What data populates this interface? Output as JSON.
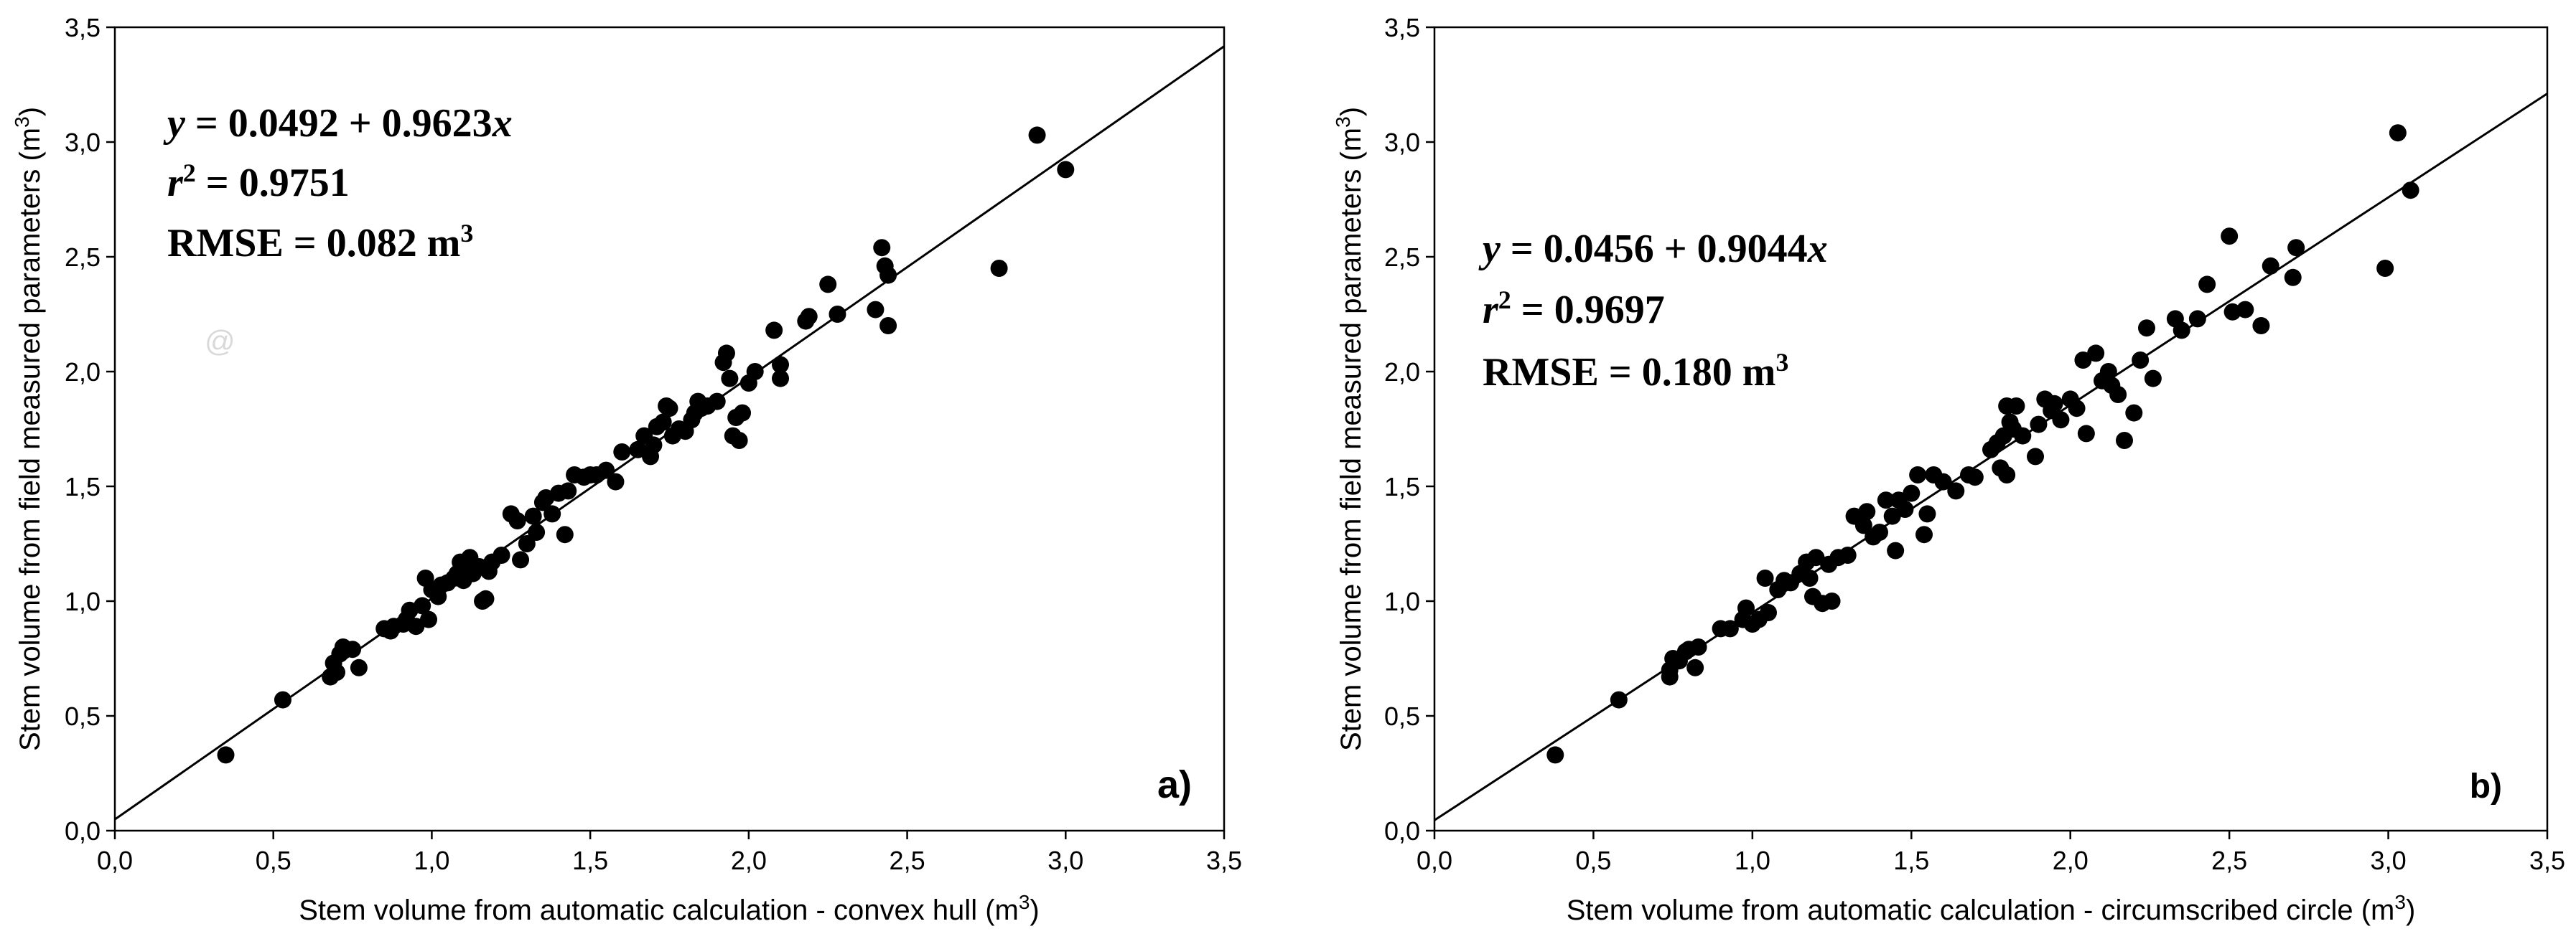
{
  "chart_data": [
    {
      "type": "scatter",
      "panel_label": "a)",
      "xlabel": "Stem volume from automatic calculation - convex hull (m",
      "xlabel_sup": "3",
      "xlabel_end": ")",
      "ylabel": "Stem volume from field measured parameters (m",
      "ylabel_sup": "3",
      "ylabel_end": ")",
      "xlim": [
        0,
        3.5
      ],
      "ylim": [
        0,
        3.5
      ],
      "xticks": [
        "0,0",
        "0,5",
        "1,0",
        "1,5",
        "2,0",
        "2,5",
        "3,0",
        "3,5"
      ],
      "yticks": [
        "0,0",
        "0,5",
        "1,0",
        "1,5",
        "2,0",
        "2,5",
        "3,0",
        "3,5"
      ],
      "regression": {
        "intercept": 0.0492,
        "slope": 0.9623
      },
      "annotations": {
        "eq_y": "y",
        "eq_rest": " = 0.0492 + 0.9623",
        "eq_x": "x",
        "r2_r": "r",
        "r2_sup": "2",
        "r2_rest": " = 0.9751",
        "rmse": "RMSE = 0.082 m",
        "rmse_sup": "3",
        "stray_mark": "@"
      },
      "points": [
        [
          0.35,
          0.33
        ],
        [
          0.53,
          0.57
        ],
        [
          0.68,
          0.67
        ],
        [
          0.69,
          0.73
        ],
        [
          0.7,
          0.69
        ],
        [
          0.71,
          0.77
        ],
        [
          0.72,
          0.8
        ],
        [
          0.75,
          0.79
        ],
        [
          0.77,
          0.71
        ],
        [
          0.85,
          0.88
        ],
        [
          0.87,
          0.87
        ],
        [
          0.88,
          0.89
        ],
        [
          0.91,
          0.9
        ],
        [
          0.92,
          0.92
        ],
        [
          0.93,
          0.96
        ],
        [
          0.95,
          0.89
        ],
        [
          0.97,
          0.98
        ],
        [
          0.98,
          1.1
        ],
        [
          0.99,
          0.92
        ],
        [
          1.0,
          1.05
        ],
        [
          1.02,
          1.02
        ],
        [
          1.03,
          1.07
        ],
        [
          1.05,
          1.08
        ],
        [
          1.07,
          1.1
        ],
        [
          1.08,
          1.12
        ],
        [
          1.09,
          1.17
        ],
        [
          1.1,
          1.09
        ],
        [
          1.11,
          1.15
        ],
        [
          1.12,
          1.19
        ],
        [
          1.13,
          1.12
        ],
        [
          1.15,
          1.15
        ],
        [
          1.16,
          1.0
        ],
        [
          1.17,
          1.01
        ],
        [
          1.18,
          1.13
        ],
        [
          1.19,
          1.17
        ],
        [
          1.22,
          1.2
        ],
        [
          1.25,
          1.38
        ],
        [
          1.27,
          1.35
        ],
        [
          1.28,
          1.18
        ],
        [
          1.3,
          1.25
        ],
        [
          1.32,
          1.37
        ],
        [
          1.33,
          1.3
        ],
        [
          1.35,
          1.43
        ],
        [
          1.36,
          1.45
        ],
        [
          1.38,
          1.38
        ],
        [
          1.4,
          1.47
        ],
        [
          1.42,
          1.29
        ],
        [
          1.43,
          1.48
        ],
        [
          1.45,
          1.55
        ],
        [
          1.48,
          1.54
        ],
        [
          1.5,
          1.55
        ],
        [
          1.52,
          1.55
        ],
        [
          1.55,
          1.57
        ],
        [
          1.58,
          1.52
        ],
        [
          1.6,
          1.65
        ],
        [
          1.65,
          1.66
        ],
        [
          1.67,
          1.72
        ],
        [
          1.69,
          1.63
        ],
        [
          1.7,
          1.68
        ],
        [
          1.71,
          1.76
        ],
        [
          1.73,
          1.78
        ],
        [
          1.74,
          1.85
        ],
        [
          1.75,
          1.84
        ],
        [
          1.76,
          1.72
        ],
        [
          1.78,
          1.75
        ],
        [
          1.8,
          1.74
        ],
        [
          1.82,
          1.79
        ],
        [
          1.83,
          1.82
        ],
        [
          1.84,
          1.87
        ],
        [
          1.85,
          1.84
        ],
        [
          1.87,
          1.85
        ],
        [
          1.9,
          1.87
        ],
        [
          1.92,
          2.04
        ],
        [
          1.93,
          2.08
        ],
        [
          1.94,
          1.97
        ],
        [
          1.95,
          1.72
        ],
        [
          1.96,
          1.8
        ],
        [
          1.97,
          1.7
        ],
        [
          1.98,
          1.82
        ],
        [
          2.0,
          1.95
        ],
        [
          2.02,
          2.0
        ],
        [
          2.08,
          2.18
        ],
        [
          2.1,
          2.03
        ],
        [
          2.1,
          1.97
        ],
        [
          2.18,
          2.22
        ],
        [
          2.19,
          2.24
        ],
        [
          2.25,
          2.38
        ],
        [
          2.28,
          2.25
        ],
        [
          2.4,
          2.27
        ],
        [
          2.42,
          2.54
        ],
        [
          2.43,
          2.46
        ],
        [
          2.44,
          2.2
        ],
        [
          2.44,
          2.42
        ],
        [
          2.79,
          2.45
        ],
        [
          2.91,
          3.03
        ],
        [
          3.0,
          2.88
        ]
      ]
    },
    {
      "type": "scatter",
      "panel_label": "b)",
      "xlabel": "Stem volume from automatic calculation - circumscribed circle (m",
      "xlabel_sup": "3",
      "xlabel_end": ")",
      "ylabel": "Stem volume from field measured parameters (m",
      "ylabel_sup": "3",
      "ylabel_end": ")",
      "xlim": [
        0,
        3.5
      ],
      "ylim": [
        0,
        3.5
      ],
      "xticks": [
        "0,0",
        "0,5",
        "1,0",
        "1,5",
        "2,0",
        "2,5",
        "3,0",
        "3,5"
      ],
      "yticks": [
        "0,0",
        "0,5",
        "1,0",
        "1,5",
        "2,0",
        "2,5",
        "3,0",
        "3,5"
      ],
      "regression": {
        "intercept": 0.0456,
        "slope": 0.9044
      },
      "annotations": {
        "eq_y": "y",
        "eq_rest": " = 0.0456 + 0.9044",
        "eq_x": "x",
        "r2_r": "r",
        "r2_sup": "2",
        "r2_rest": " = 0.9697",
        "rmse": "RMSE = 0.180 m",
        "rmse_sup": "3"
      },
      "points": [
        [
          0.38,
          0.33
        ],
        [
          0.58,
          0.57
        ],
        [
          0.74,
          0.67
        ],
        [
          0.74,
          0.7
        ],
        [
          0.75,
          0.75
        ],
        [
          0.77,
          0.74
        ],
        [
          0.79,
          0.78
        ],
        [
          0.8,
          0.79
        ],
        [
          0.82,
          0.71
        ],
        [
          0.83,
          0.8
        ],
        [
          0.9,
          0.88
        ],
        [
          0.93,
          0.88
        ],
        [
          0.97,
          0.92
        ],
        [
          0.98,
          0.97
        ],
        [
          1.0,
          0.9
        ],
        [
          1.02,
          0.92
        ],
        [
          1.04,
          1.1
        ],
        [
          1.05,
          0.95
        ],
        [
          1.08,
          1.05
        ],
        [
          1.1,
          1.09
        ],
        [
          1.12,
          1.08
        ],
        [
          1.15,
          1.12
        ],
        [
          1.17,
          1.17
        ],
        [
          1.18,
          1.1
        ],
        [
          1.19,
          1.02
        ],
        [
          1.2,
          1.19
        ],
        [
          1.22,
          0.99
        ],
        [
          1.24,
          1.16
        ],
        [
          1.25,
          1.0
        ],
        [
          1.27,
          1.19
        ],
        [
          1.3,
          1.2
        ],
        [
          1.32,
          1.37
        ],
        [
          1.35,
          1.33
        ],
        [
          1.36,
          1.39
        ],
        [
          1.38,
          1.28
        ],
        [
          1.4,
          1.3
        ],
        [
          1.42,
          1.44
        ],
        [
          1.44,
          1.37
        ],
        [
          1.45,
          1.22
        ],
        [
          1.46,
          1.44
        ],
        [
          1.48,
          1.4
        ],
        [
          1.5,
          1.47
        ],
        [
          1.52,
          1.55
        ],
        [
          1.54,
          1.29
        ],
        [
          1.55,
          1.38
        ],
        [
          1.57,
          1.55
        ],
        [
          1.6,
          1.52
        ],
        [
          1.64,
          1.48
        ],
        [
          1.68,
          1.55
        ],
        [
          1.7,
          1.54
        ],
        [
          1.75,
          1.66
        ],
        [
          1.77,
          1.69
        ],
        [
          1.78,
          1.58
        ],
        [
          1.79,
          1.72
        ],
        [
          1.8,
          1.85
        ],
        [
          1.8,
          1.55
        ],
        [
          1.81,
          1.78
        ],
        [
          1.82,
          1.75
        ],
        [
          1.83,
          1.85
        ],
        [
          1.85,
          1.72
        ],
        [
          1.89,
          1.63
        ],
        [
          1.9,
          1.77
        ],
        [
          1.92,
          1.88
        ],
        [
          1.94,
          1.83
        ],
        [
          1.95,
          1.86
        ],
        [
          1.97,
          1.79
        ],
        [
          2.0,
          1.88
        ],
        [
          2.02,
          1.84
        ],
        [
          2.04,
          2.05
        ],
        [
          2.05,
          1.73
        ],
        [
          2.08,
          2.08
        ],
        [
          2.1,
          1.96
        ],
        [
          2.12,
          2.0
        ],
        [
          2.13,
          1.94
        ],
        [
          2.15,
          1.9
        ],
        [
          2.17,
          1.7
        ],
        [
          2.2,
          1.82
        ],
        [
          2.22,
          2.05
        ],
        [
          2.24,
          2.19
        ],
        [
          2.26,
          1.97
        ],
        [
          2.33,
          2.23
        ],
        [
          2.35,
          2.18
        ],
        [
          2.4,
          2.23
        ],
        [
          2.43,
          2.38
        ],
        [
          2.5,
          2.59
        ],
        [
          2.51,
          2.26
        ],
        [
          2.55,
          2.27
        ],
        [
          2.6,
          2.2
        ],
        [
          2.63,
          2.46
        ],
        [
          2.7,
          2.41
        ],
        [
          2.71,
          2.54
        ],
        [
          2.99,
          2.45
        ],
        [
          3.03,
          3.04
        ],
        [
          3.07,
          2.79
        ]
      ]
    }
  ]
}
